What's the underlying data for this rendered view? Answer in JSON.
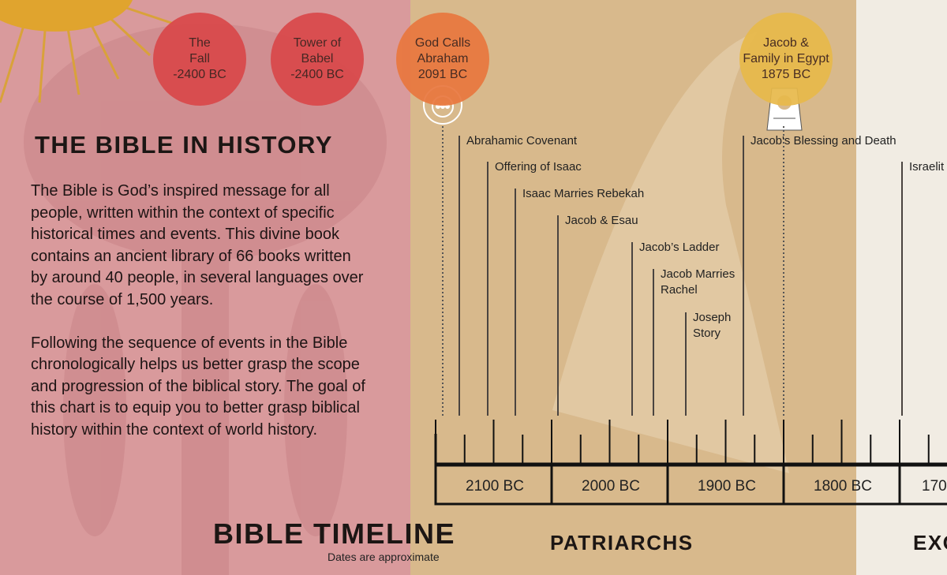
{
  "header": {
    "title": "THE BIBLE IN HISTORY"
  },
  "intro": {
    "paragraphs": [
      "The Bible is God’s inspired message for all people, written within the context of specific historical times and events. This divine book contains an ancient library of 66 books written by around 40 people, in several languages over the course of 1,500 years.",
      "Following the sequence of events in the Bible chronologically helps us better grasp the scope and progression of the biblical story. The goal of this chart is to equip you to better grasp biblical history within the context of world history."
    ]
  },
  "milestones": [
    {
      "lines": [
        "The",
        "Fall",
        "-2400 BC"
      ]
    },
    {
      "lines": [
        "Tower of",
        "Babel",
        "-2400 BC"
      ]
    },
    {
      "lines": [
        "God Calls",
        "Abraham",
        "2091 BC"
      ]
    },
    {
      "lines": [
        "Jacob &",
        "Family in Egypt",
        "1875 BC"
      ]
    }
  ],
  "events": [
    {
      "lines": [
        "Abrahamic Covenant"
      ]
    },
    {
      "lines": [
        "Offering of Isaac"
      ]
    },
    {
      "lines": [
        "Isaac Marries Rebekah"
      ]
    },
    {
      "lines": [
        "Jacob & Esau"
      ]
    },
    {
      "lines": [
        "Jacob’s Ladder"
      ]
    },
    {
      "lines": [
        "Jacob Marries",
        "Rachel"
      ]
    },
    {
      "lines": [
        "Joseph",
        "Story"
      ]
    },
    {
      "lines": [
        "Jacob's Blessing and Death"
      ]
    },
    {
      "lines": [
        "Israelit"
      ]
    }
  ],
  "timeline": {
    "title": "BIBLE TIMELINE",
    "note": "Dates are approximate",
    "eras": [
      "2100 BC",
      "2000 BC",
      "1900 BC",
      "1800 BC",
      "170"
    ],
    "sections": [
      "PATRIARCHS",
      "EXO"
    ]
  }
}
